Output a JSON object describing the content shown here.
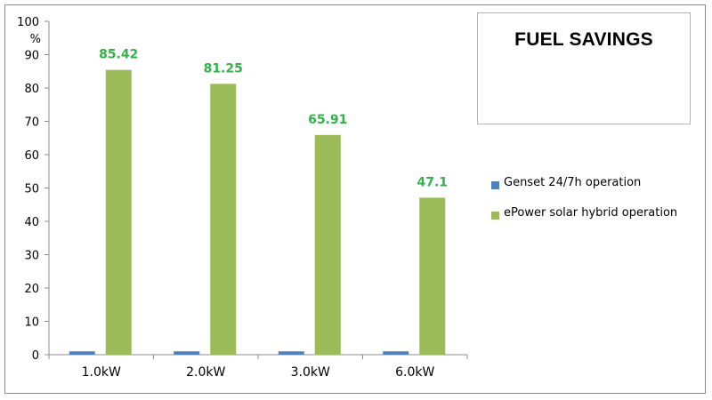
{
  "chart_data": {
    "type": "bar",
    "title": "FUEL SAVINGS",
    "ylabel": "%",
    "xlabel": "",
    "categories": [
      "1.0kW",
      "2.0kW",
      "3.0kW",
      "6.0kW"
    ],
    "ylim": [
      0,
      100
    ],
    "yticks": [
      0,
      10,
      20,
      30,
      40,
      50,
      60,
      70,
      80,
      90,
      100
    ],
    "grid": false,
    "legend_position": "right",
    "series": [
      {
        "name": "Genset 24/7h operation",
        "color": "#4f81bd",
        "values": [
          1,
          1,
          1,
          1
        ]
      },
      {
        "name": "ePower solar hybrid operation",
        "color": "#9bbb59",
        "values": [
          85.42,
          81.25,
          65.91,
          47.1
        ],
        "data_labels": [
          "85.42",
          "81.25",
          "65.91",
          "47.1"
        ],
        "data_label_color": "#33b24a"
      }
    ]
  }
}
